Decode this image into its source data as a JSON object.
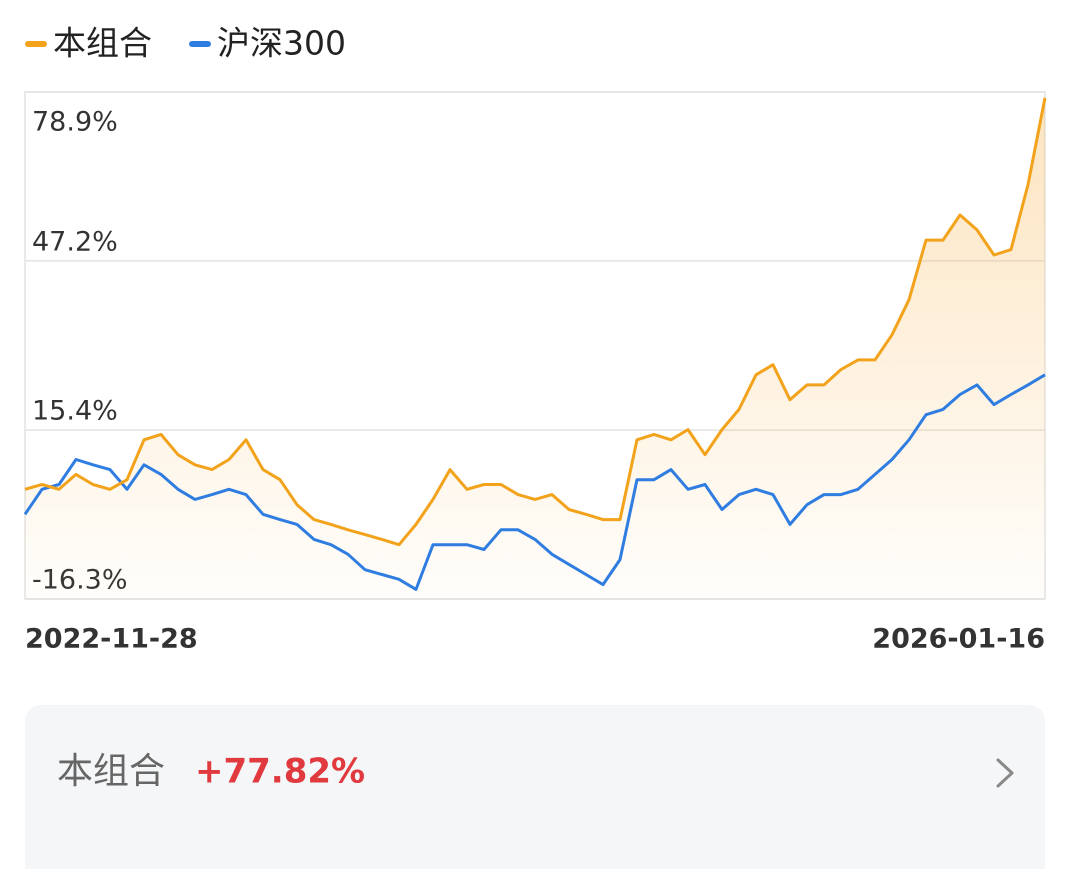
{
  "chart_data": {
    "type": "line",
    "categories": [
      "2022-11-28",
      null,
      null,
      null,
      null,
      null,
      null,
      null,
      null,
      null,
      null,
      null,
      null,
      null,
      null,
      null,
      null,
      null,
      null,
      null,
      null,
      null,
      null,
      null,
      null,
      null,
      null,
      null,
      null,
      null,
      null,
      null,
      null,
      null,
      null,
      null,
      null,
      null,
      null,
      null,
      null,
      null,
      null,
      null,
      null,
      null,
      null,
      null,
      null,
      null,
      null,
      null,
      null,
      null,
      null,
      null,
      null,
      null,
      null,
      null,
      "2026-01-16"
    ],
    "series": [
      {
        "name": "本组合",
        "color": "#f2a31b",
        "values": [
          4.3,
          5.2,
          4.3,
          7.1,
          5.2,
          4.3,
          6.1,
          13.6,
          14.6,
          10.8,
          8.9,
          8.0,
          9.9,
          13.6,
          8.0,
          6.1,
          1.4,
          -1.4,
          -2.3,
          -3.3,
          -4.2,
          -5.1,
          -6.1,
          -2.3,
          2.4,
          8.0,
          4.3,
          5.2,
          5.2,
          3.3,
          2.4,
          3.3,
          0.5,
          -0.4,
          -1.4,
          -1.4,
          13.6,
          14.6,
          13.6,
          15.5,
          10.8,
          15.5,
          19.3,
          25.8,
          27.7,
          21.1,
          23.9,
          23.9,
          26.8,
          28.6,
          28.6,
          33.3,
          39.9,
          51.1,
          51.1,
          55.8,
          53.0,
          48.3,
          49.3,
          61.5,
          77.82
        ]
      },
      {
        "name": "沪深300",
        "color": "#2f7de1",
        "values": [
          -0.4,
          4.3,
          5.2,
          9.9,
          8.9,
          8.0,
          4.3,
          8.9,
          7.1,
          4.3,
          2.4,
          3.3,
          4.3,
          3.3,
          -0.4,
          -1.4,
          -2.3,
          -5.1,
          -6.1,
          -7.9,
          -10.8,
          -11.7,
          -12.6,
          -14.5,
          -6.1,
          -6.1,
          -6.1,
          -7.0,
          -3.3,
          -3.3,
          -5.1,
          -7.9,
          -9.8,
          -11.7,
          -13.6,
          -8.9,
          6.1,
          6.1,
          8.0,
          4.3,
          5.2,
          0.5,
          3.3,
          4.3,
          3.3,
          -2.3,
          1.4,
          3.3,
          3.3,
          4.3,
          7.1,
          9.9,
          13.6,
          18.3,
          19.3,
          22.1,
          23.9,
          20.2,
          22.1,
          23.9,
          25.8
        ]
      }
    ],
    "ylim": [
      -16.3,
      78.9
    ],
    "yticks": [
      {
        "value": -16.3,
        "label": "-16.3%"
      },
      {
        "value": 15.4,
        "label": "15.4%"
      },
      {
        "value": 47.2,
        "label": "47.2%"
      },
      {
        "value": 78.9,
        "label": "78.9%"
      }
    ],
    "grid": true,
    "area": true
  },
  "summary": {
    "label": "本组合",
    "value": "+77.82%"
  }
}
